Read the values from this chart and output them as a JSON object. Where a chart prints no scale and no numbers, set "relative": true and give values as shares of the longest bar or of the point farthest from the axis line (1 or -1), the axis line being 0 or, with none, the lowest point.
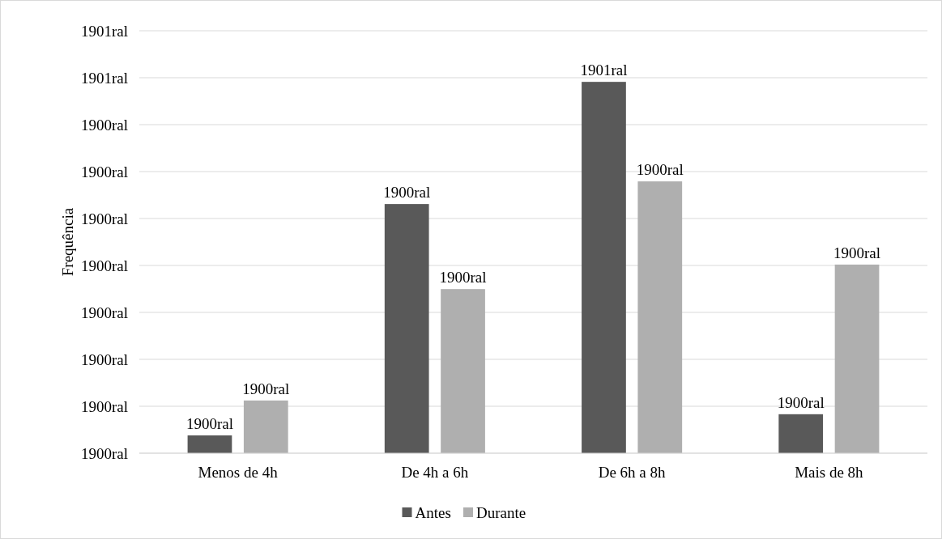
{
  "chart_data": {
    "type": "bar",
    "ylabel": "Frequência",
    "relative": true,
    "categories": [
      "Menos de 4h",
      "De 4h a 6h",
      "De 6h a 8h",
      "Mais de 8h"
    ],
    "series": [
      {
        "name": "Antes",
        "color": "#595959",
        "values": [
          0.048,
          0.671,
          1,
          0.105
        ]
      },
      {
        "name": "Durante",
        "color": "#afafaf",
        "values": [
          0.142,
          0.442,
          0.732,
          0.508
        ]
      }
    ],
    "annotations": [
      "1900ral",
      "1900ral",
      "1900ral",
      "1900ral",
      "1900ral",
      "1900ral",
      "1900ral",
      "1900ral",
      "1901ral",
      "1901ral",
      "1900ral",
      "1900ral",
      "1901ral",
      "1900ral",
      "1900ral",
      "1900ral",
      "1900ral",
      "1900ral"
    ],
    "grid": "y",
    "legend": "bottom"
  }
}
